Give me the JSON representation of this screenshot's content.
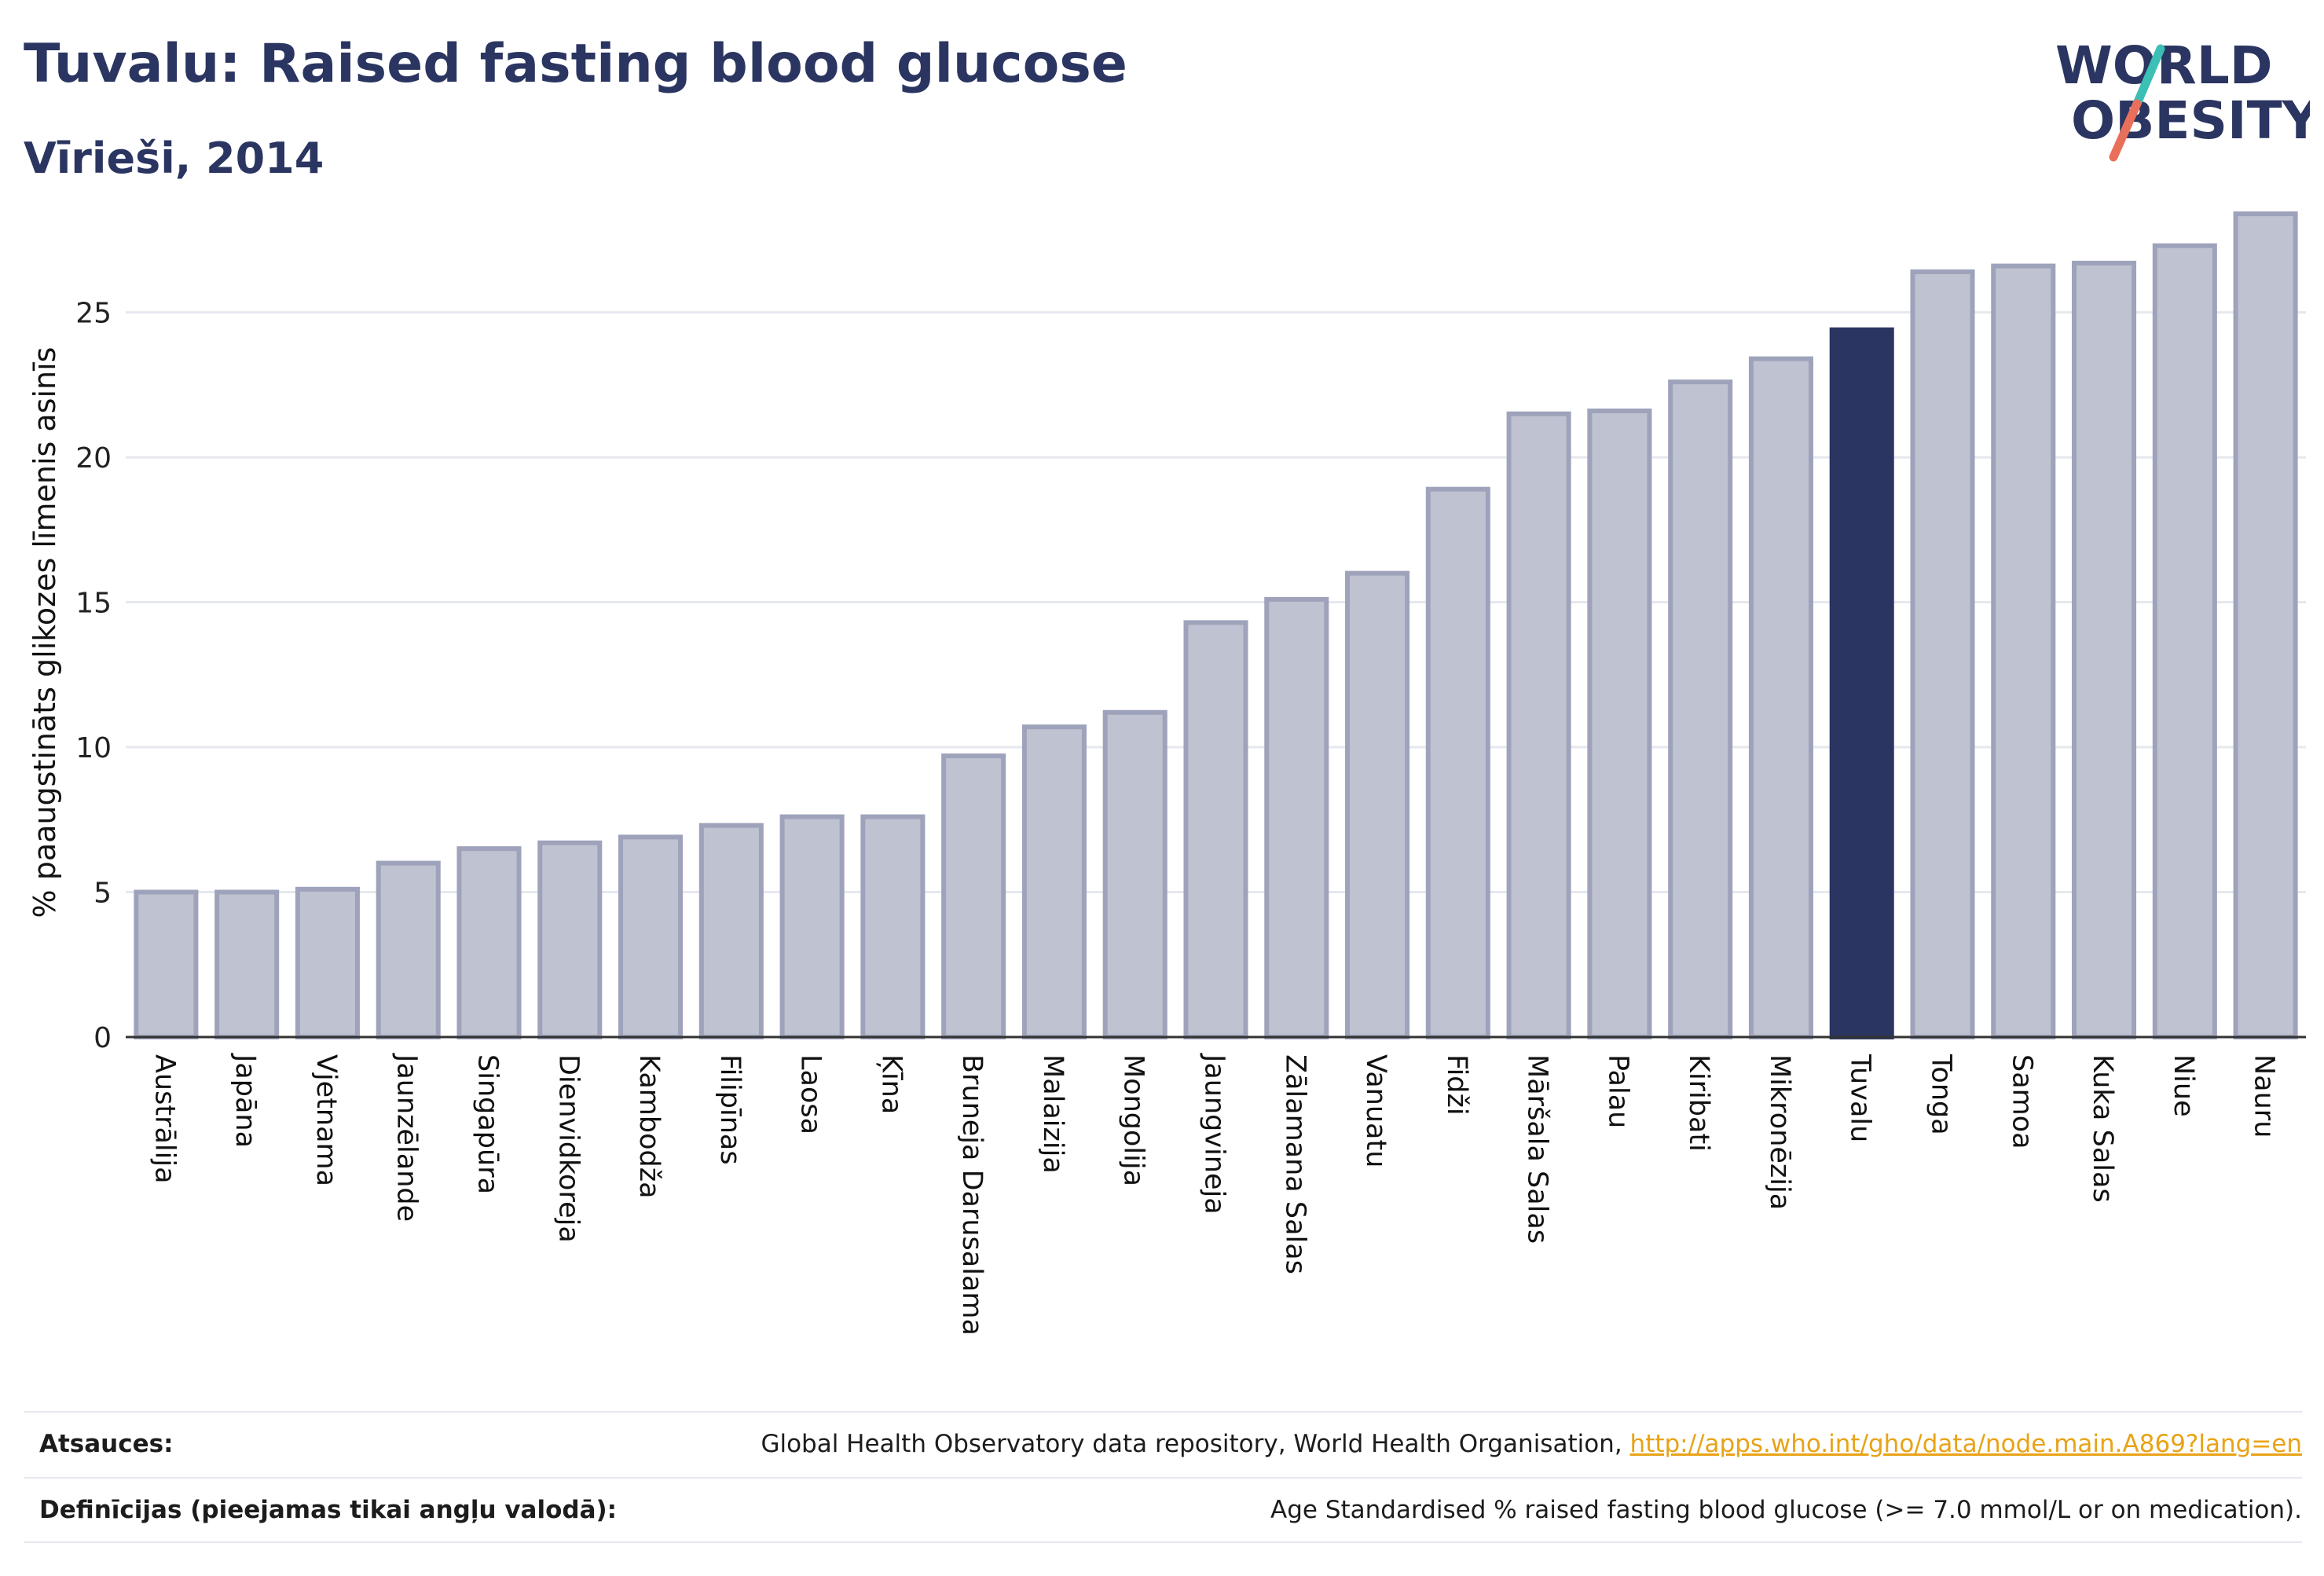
{
  "header": {
    "title": "Tuvalu: Raised fasting blood glucose",
    "subtitle": "Vīrieši, 2014"
  },
  "logo": {
    "line1": "WORLD",
    "line2": "OBESITY",
    "accent_colors": [
      "#3cbfb4",
      "#e8705a"
    ]
  },
  "colors": {
    "bar": "#bfc2d0",
    "bar_border": "#9ea3bb",
    "highlight": "#2b3561",
    "grid": "#e6e8ef",
    "axis": "#333333"
  },
  "chart_data": {
    "type": "bar",
    "ylabel": "% paaugstināts glikozes līmenis asinīs",
    "ylim": [
      0,
      29
    ],
    "yticks": [
      0,
      5,
      10,
      15,
      20,
      25
    ],
    "highlight": "Tuvalu",
    "categories": [
      "Austrālija",
      "Japāna",
      "Vjetnama",
      "Jaunzēlande",
      "Singapūra",
      "Dienvidkoreja",
      "Kambodža",
      "Filipīnas",
      "Laosa",
      "Ķīna",
      "Bruneja Darusalama",
      "Malaizija",
      "Mongolija",
      "Jaungvineja",
      "Zālamana Salas",
      "Vanuatu",
      "Fidži",
      "Māršala Salas",
      "Palau",
      "Kiribati",
      "Mikronēzija",
      "Tuvalu",
      "Tonga",
      "Samoa",
      "Kuka Salas",
      "Niue",
      "Nauru"
    ],
    "values": [
      5.0,
      5.0,
      5.1,
      6.0,
      6.5,
      6.7,
      6.9,
      7.3,
      7.6,
      7.6,
      9.7,
      10.7,
      11.2,
      14.3,
      15.1,
      16.0,
      18.9,
      21.5,
      21.6,
      22.6,
      23.4,
      24.4,
      26.4,
      26.6,
      26.7,
      27.3,
      28.4
    ]
  },
  "footer": {
    "sources_label": "Atsauces:",
    "sources_text": "Global Health Observatory data repository, World Health Organisation, ",
    "sources_link": "http://apps.who.int/gho/data/node.main.A869?lang=en",
    "definitions_label": "Definīcijas (pieejamas tikai angļu valodā):",
    "definitions_text": "Age Standardised % raised fasting blood glucose (>= 7.0 mmol/L or on medication)."
  }
}
